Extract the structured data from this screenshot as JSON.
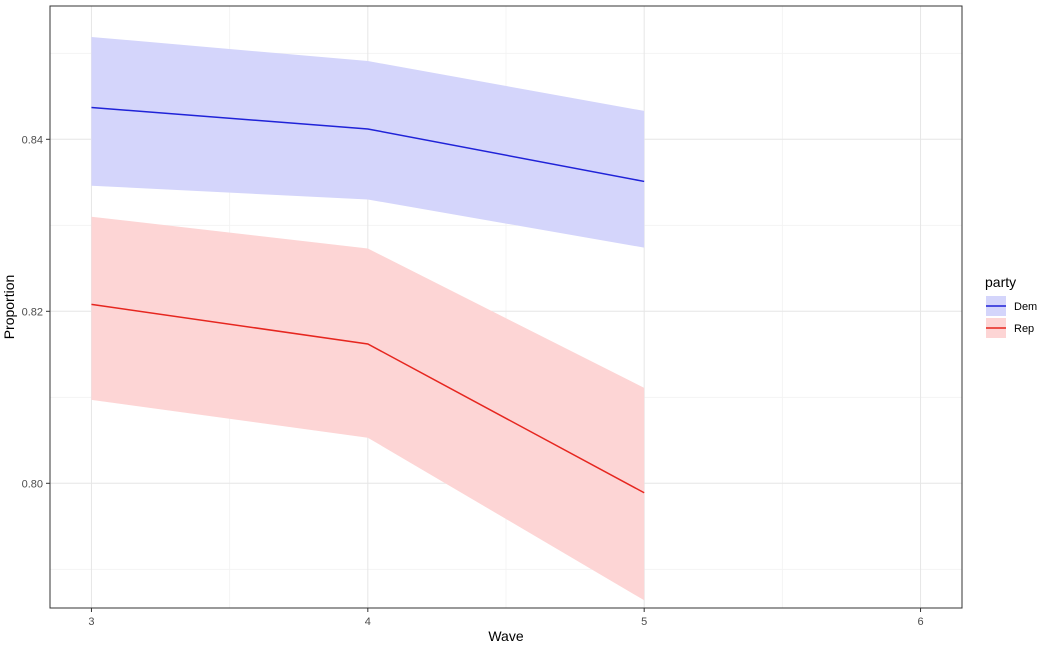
{
  "chart_data": {
    "type": "line",
    "title": "",
    "xlabel": "Wave",
    "ylabel": "Proportion",
    "xlim": [
      2.85,
      6.15
    ],
    "ylim": [
      0.7855,
      0.8555
    ],
    "x_ticks": [
      3,
      4,
      5,
      6
    ],
    "x_tick_labels": [
      "3",
      "4",
      "5",
      "6"
    ],
    "y_ticks": [
      0.8,
      0.82,
      0.84
    ],
    "y_tick_labels": [
      "0.80",
      "0.82",
      "0.84"
    ],
    "y_minor_ticks": [
      0.79,
      0.81,
      0.83,
      0.85
    ],
    "x_minor_ticks": [
      3.5,
      4.5,
      5.5
    ],
    "grid": true,
    "legend": {
      "title": "party",
      "position": "right"
    },
    "series": [
      {
        "name": "Dem",
        "color": "#1f22d8",
        "fill": "#d4d5fb",
        "x": [
          3,
          4,
          5
        ],
        "values": [
          0.8437,
          0.8412,
          0.8351
        ],
        "lower": [
          0.8346,
          0.833,
          0.8274
        ],
        "upper": [
          0.8519,
          0.8491,
          0.8433
        ]
      },
      {
        "name": "Rep",
        "color": "#e6261f",
        "fill": "#fdd5d5",
        "x": [
          3,
          4,
          5
        ],
        "values": [
          0.8208,
          0.8162,
          0.7989
        ],
        "lower": [
          0.8097,
          0.8053,
          0.7864
        ],
        "upper": [
          0.831,
          0.8273,
          0.8111
        ]
      }
    ]
  }
}
